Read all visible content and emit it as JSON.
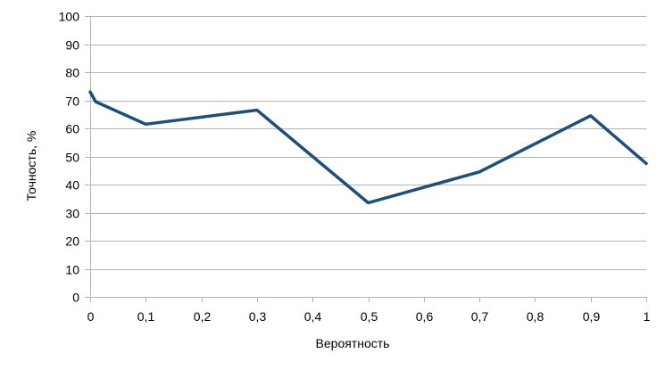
{
  "chart_data": {
    "type": "line",
    "title": "",
    "xlabel": "Вероятность",
    "ylabel": "Точность, %",
    "xlim": [
      0,
      1
    ],
    "ylim": [
      0,
      100
    ],
    "xticks": [
      0,
      0.1,
      0.2,
      0.3,
      0.4,
      0.5,
      0.6,
      0.7,
      0.8,
      0.9,
      1
    ],
    "xtick_labels": [
      "0",
      "0,1",
      "0,2",
      "0,3",
      "0,4",
      "0,5",
      "0,6",
      "0,7",
      "0,8",
      "0,9",
      "1"
    ],
    "yticks": [
      0,
      10,
      20,
      30,
      40,
      50,
      60,
      70,
      80,
      90,
      100
    ],
    "ytick_labels": [
      "0",
      "10",
      "20",
      "30",
      "40",
      "50",
      "60",
      "70",
      "80",
      "90",
      "100"
    ],
    "grid": true,
    "legend": "none",
    "series": [
      {
        "color": "#1f4e79",
        "x": [
          0,
          0.01,
          0.1,
          0.3,
          0.5,
          0.7,
          0.9,
          1
        ],
        "y": [
          73,
          69.5,
          61.5,
          66.5,
          33.5,
          44.5,
          64.5,
          47.5
        ]
      }
    ]
  }
}
